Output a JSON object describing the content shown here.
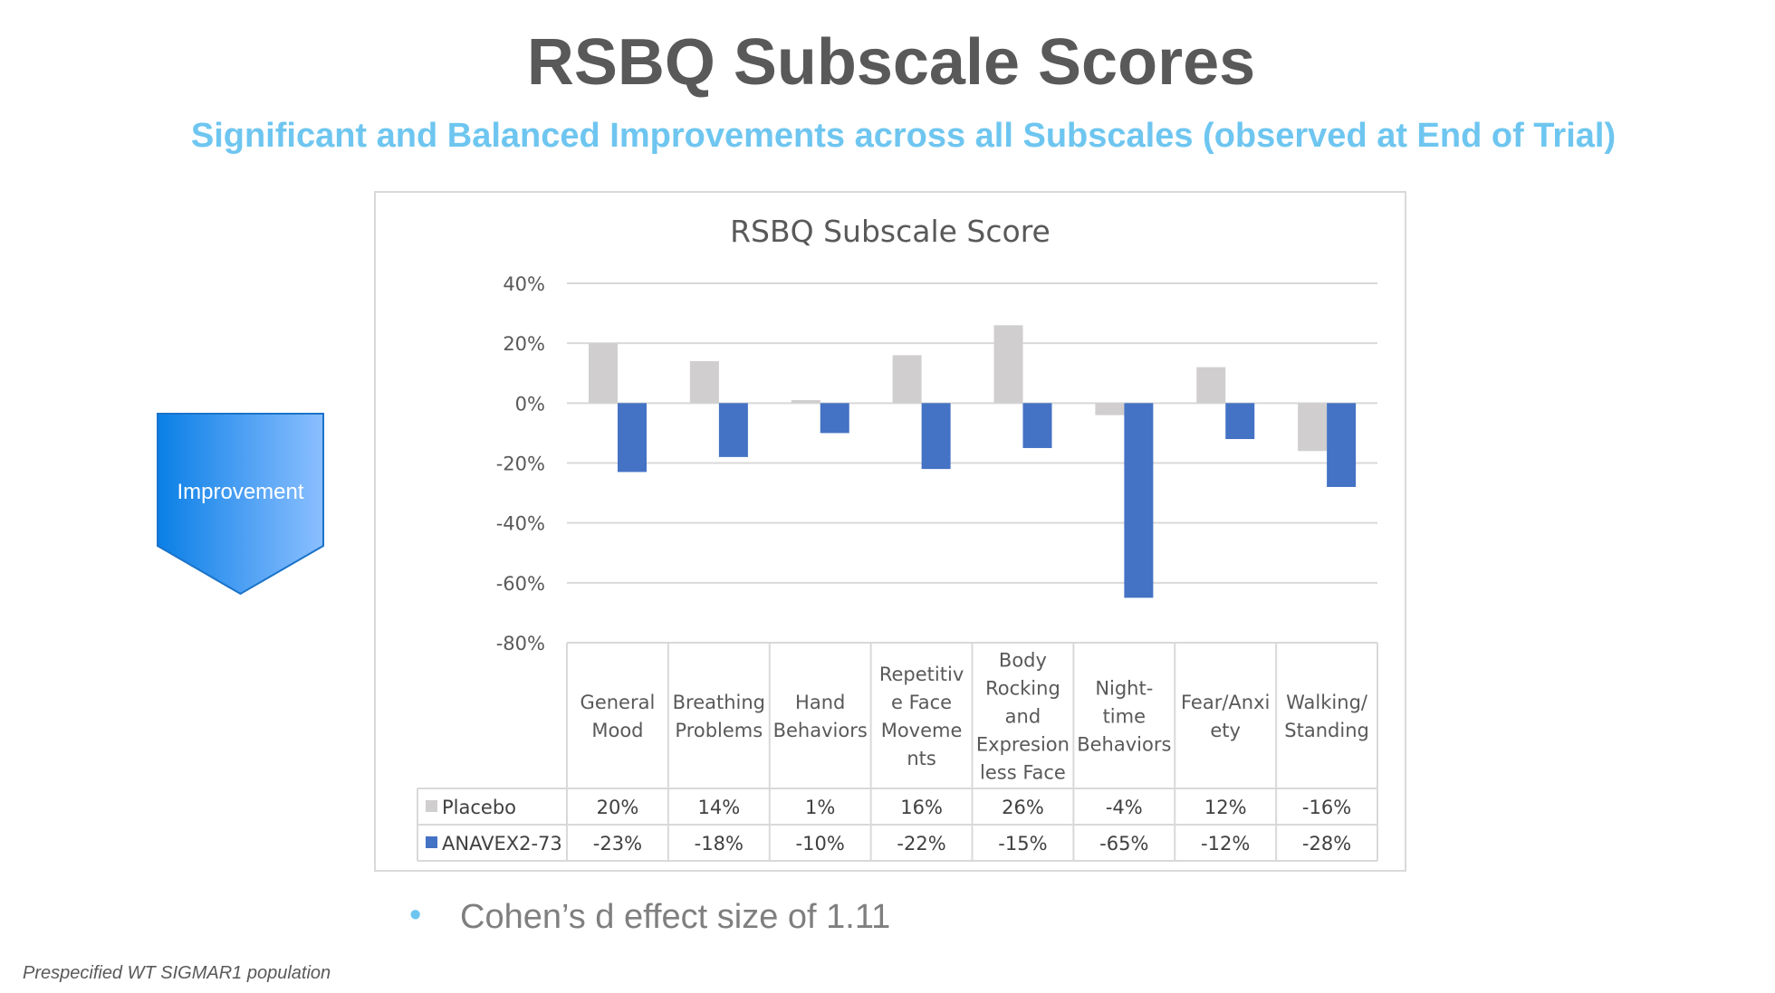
{
  "slide": {
    "title": "RSBQ Subscale Scores",
    "subtitle": "Significant and Balanced Improvements across all Subscales (observed at End of Trial)",
    "arrow_label": "Improvement",
    "bullet": "Cohen’s d effect size of 1.11",
    "footnote": "Prespecified WT SIGMAR1 population"
  },
  "chart_data": {
    "type": "bar",
    "title": "RSBQ Subscale Score",
    "categories": [
      [
        "General",
        "Mood"
      ],
      [
        "Breathing",
        "Problems"
      ],
      [
        "Hand",
        "Behaviors"
      ],
      [
        "Repetitiv",
        "e Face",
        "Moveme",
        "nts"
      ],
      [
        "Body",
        "Rocking",
        "and",
        "Expresion",
        "less Face"
      ],
      [
        "Night-",
        "time",
        "Behaviors"
      ],
      [
        "Fear/Anxi",
        "ety"
      ],
      [
        "Walking/",
        "Standing"
      ]
    ],
    "series": [
      {
        "name": "Placebo",
        "color": "#D0CECE",
        "values": [
          20,
          14,
          1,
          16,
          26,
          -4,
          12,
          -16
        ],
        "labels": [
          "20%",
          "14%",
          "1%",
          "16%",
          "26%",
          "-4%",
          "12%",
          "-16%"
        ]
      },
      {
        "name": "ANAVEX2-73",
        "color": "#4472C4",
        "values": [
          -23,
          -18,
          -10,
          -22,
          -15,
          -65,
          -12,
          -28
        ],
        "labels": [
          "-23%",
          "-18%",
          "-10%",
          "-22%",
          "-15%",
          "-65%",
          "-12%",
          "-28%"
        ]
      }
    ],
    "ylim": [
      -80,
      40
    ],
    "yticks": [
      "40%",
      "20%",
      "0%",
      "-20%",
      "-40%",
      "-60%",
      "-80%"
    ],
    "ytick_values": [
      40,
      20,
      0,
      -20,
      -40,
      -60,
      -80
    ],
    "grid": true,
    "legend": "data-table"
  }
}
